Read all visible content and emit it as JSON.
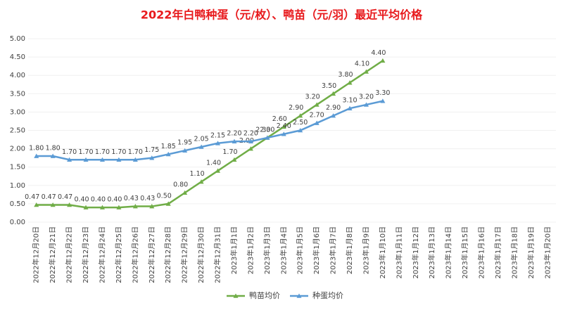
{
  "chart_data": {
    "type": "line",
    "title": "2022年白鸭种蛋（元/枚）、鸭苗（元/羽）最近平均价格",
    "categories": [
      "2022年12月20日",
      "2022年12月21日",
      "2022年12月22日",
      "2022年12月23日",
      "2022年12月24日",
      "2022年12月25日",
      "2022年12月26日",
      "2022年12月27日",
      "2022年12月28日",
      "2022年12月29日",
      "2022年12月30日",
      "2022年12月31日",
      "2023年1月1日",
      "2023年1月2日",
      "2023年1月3日",
      "2023年1月4日",
      "2023年1月5日",
      "2023年1月6日",
      "2023年1月7日",
      "2023年1月8日",
      "2023年1月9日",
      "2023年1月10日",
      "2023年1月11日",
      "2023年1月12日",
      "2023年1月13日",
      "2023年1月14日",
      "2023年1月15日",
      "2023年1月16日",
      "2023年1月17日",
      "2023年1月18日",
      "2023年1月19日",
      "2023年1月20日"
    ],
    "series": [
      {
        "name": "鸭苗均价",
        "color": "#70ad47",
        "values": [
          0.47,
          0.47,
          0.47,
          0.4,
          0.4,
          0.4,
          0.43,
          0.43,
          0.5,
          0.8,
          1.1,
          1.4,
          1.7,
          2.0,
          2.3,
          2.6,
          2.9,
          3.2,
          3.5,
          3.8,
          4.1,
          4.4,
          null,
          null,
          null,
          null,
          null,
          null,
          null,
          null,
          null,
          null
        ],
        "value_labels": [
          "0.47",
          "0.47",
          "0.47",
          "0.40",
          "0.40",
          "0.40",
          "0.43",
          "0.43",
          "0.50",
          "0.80",
          "1.10",
          "1.40",
          "1.70",
          "2.00",
          "2.30",
          "2.60",
          "2.90",
          "3.20",
          "3.50",
          "3.80",
          "4.10",
          "4.40",
          null,
          null,
          null,
          null,
          null,
          null,
          null,
          null,
          null,
          null
        ]
      },
      {
        "name": "种蛋均价",
        "color": "#5b9bd5",
        "values": [
          1.8,
          1.8,
          1.7,
          1.7,
          1.7,
          1.7,
          1.7,
          1.75,
          1.85,
          1.95,
          2.05,
          2.15,
          2.2,
          2.2,
          2.3,
          2.4,
          2.5,
          2.7,
          2.9,
          3.1,
          3.2,
          3.3,
          null,
          null,
          null,
          null,
          null,
          null,
          null,
          null,
          null,
          null
        ],
        "value_labels": [
          "1.80",
          "1.80",
          "1.70",
          "1.70",
          "1.70",
          "1.70",
          "1.70",
          "1.75",
          "1.85",
          "1.95",
          "2.05",
          "2.15",
          "2.20",
          "2.20",
          "2.30",
          "2.40",
          "2.50",
          "2.70",
          "2.90",
          "3.10",
          "3.20",
          "3.30",
          null,
          null,
          null,
          null,
          null,
          null,
          null,
          null,
          null,
          null
        ]
      }
    ],
    "ylim": [
      0,
      5
    ],
    "yticks": [
      {
        "value": 0,
        "label": "0.00"
      },
      {
        "value": 0.5,
        "label": "0.50"
      },
      {
        "value": 1,
        "label": "1.00"
      },
      {
        "value": 1.5,
        "label": "1.50"
      },
      {
        "value": 2,
        "label": "2.00"
      },
      {
        "value": 2.5,
        "label": "2.50"
      },
      {
        "value": 3,
        "label": "3.00"
      },
      {
        "value": 3.5,
        "label": "3.50"
      },
      {
        "value": 4,
        "label": "4.00"
      },
      {
        "value": 4.5,
        "label": "4.50"
      },
      {
        "value": 5,
        "label": "5.00"
      }
    ],
    "grid": true,
    "legend": "bottom"
  }
}
